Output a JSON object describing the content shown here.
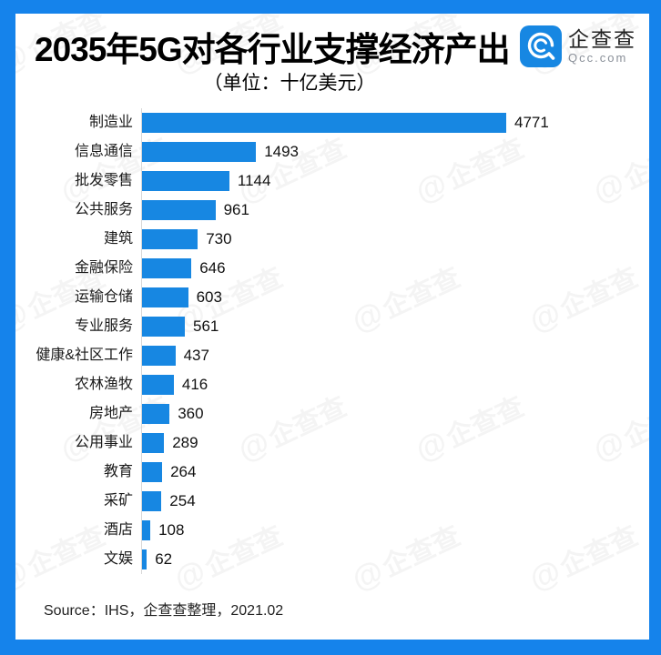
{
  "header": {
    "title": "2035年5G对各行业支撑经济产出",
    "subtitle": "（单位：十亿美元）",
    "logo": {
      "name": "企查查",
      "domain": "Qcc.com"
    }
  },
  "chart_data": {
    "type": "bar",
    "orientation": "horizontal",
    "title": "2035年5G对各行业支撑经济产出",
    "unit_label": "（单位：十亿美元）",
    "categories": [
      "制造业",
      "信息通信",
      "批发零售",
      "公共服务",
      "建筑",
      "金融保险",
      "运输仓储",
      "专业服务",
      "健康&社区工作",
      "农林渔牧",
      "房地产",
      "公用事业",
      "教育",
      "采矿",
      "酒店",
      "文娱"
    ],
    "values": [
      4771,
      1493,
      1144,
      961,
      730,
      646,
      603,
      561,
      437,
      416,
      360,
      289,
      264,
      254,
      108,
      62
    ],
    "xlim": [
      0,
      4771
    ],
    "grid": false,
    "legend": false,
    "value_labels_shown": true
  },
  "source": "Source：IHS，企查查整理，2021.02",
  "watermark": {
    "text": "企查查"
  },
  "colors": {
    "frame": "#1583EB",
    "bar": "#1787E2",
    "axis_line": "#D8D8D8",
    "title_text": "#000000",
    "label_text": "#1A1A1A",
    "logo_blue": "#1787E2",
    "logo_name_text": "#222222",
    "logo_domain_text": "#8A9099"
  }
}
